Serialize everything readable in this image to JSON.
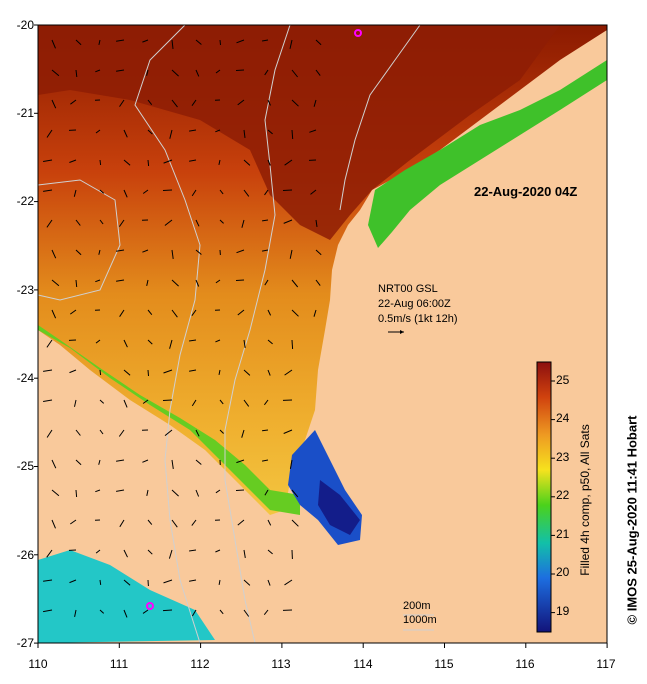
{
  "title": "22-Aug-2020 04Z",
  "current_info": {
    "product": "NRT00 GSL",
    "time": "22-Aug 06:00Z",
    "scale": "0.5m/s (1kt 12h)"
  },
  "contour_legend": {
    "shallow": "200m",
    "deep": "1000m"
  },
  "colorbar": {
    "title": "Filled 4h comp, p50, All Sats",
    "ticks": [
      "25",
      "24",
      "23",
      "22",
      "21",
      "20",
      "19"
    ],
    "range": [
      18.5,
      25.5
    ]
  },
  "credit": "© IMOS 25-Aug-2020 11:41 Hobart",
  "axes": {
    "lat_ticks": [
      "-20",
      "-21",
      "-22",
      "-23",
      "-24",
      "-25",
      "-26",
      "-27"
    ],
    "lon_ticks": [
      "110",
      "111",
      "112",
      "113",
      "114",
      "115",
      "116",
      "117"
    ]
  },
  "colors": {
    "land": "#f9c99b",
    "no_data": "#ffffff",
    "isobath": "#d0d0d0",
    "marker": "#ff00ff"
  }
}
